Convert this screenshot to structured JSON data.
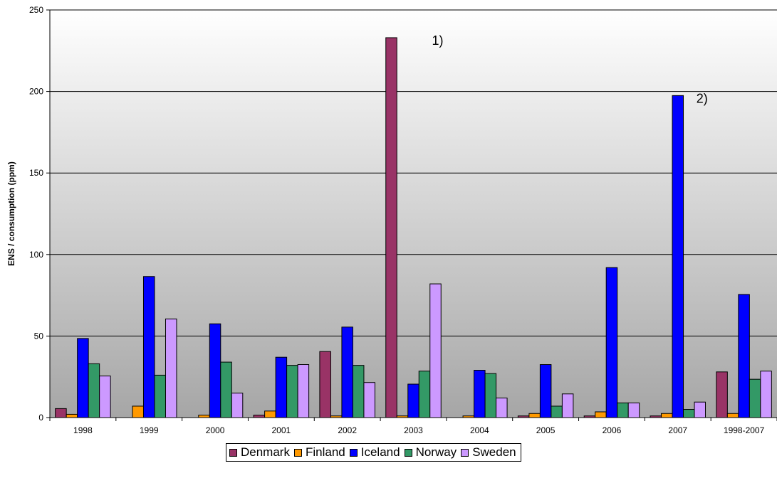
{
  "chart_data": {
    "type": "bar",
    "ylabel": "ENS / consumption (ppm)",
    "xlabel": "",
    "title": "",
    "ylim": [
      0,
      250
    ],
    "yticks": [
      0,
      50,
      100,
      150,
      200,
      250
    ],
    "categories": [
      "1998",
      "1999",
      "2000",
      "2001",
      "2002",
      "2003",
      "2004",
      "2005",
      "2006",
      "2007",
      "1998-2007"
    ],
    "series": [
      {
        "name": "Denmark",
        "color": "#993366",
        "values": [
          5.5,
          0,
          0,
          1.5,
          40.5,
          233,
          0,
          1,
          1,
          1,
          28
        ]
      },
      {
        "name": "Finland",
        "color": "#FF9900",
        "values": [
          2,
          7,
          1.5,
          4,
          1,
          1,
          1,
          2.5,
          3.5,
          2.5,
          2.5
        ]
      },
      {
        "name": "Iceland",
        "color": "#0000FF",
        "values": [
          48.5,
          86.5,
          57.5,
          37,
          55.5,
          20.5,
          29,
          32.5,
          92,
          197.5,
          75.5
        ]
      },
      {
        "name": "Norway",
        "color": "#339966",
        "values": [
          33,
          26,
          34,
          32,
          32,
          28.5,
          27,
          7,
          9,
          5,
          23.5
        ]
      },
      {
        "name": "Sweden",
        "color": "#CC99FF",
        "values": [
          25.5,
          60.5,
          15,
          32.5,
          21.5,
          82,
          12,
          14.5,
          9,
          9.5,
          28.5
        ]
      }
    ],
    "annotations": [
      {
        "text": "1)",
        "category": "2003",
        "y": 233
      },
      {
        "text": "2)",
        "category": "2007",
        "y": 197.5
      }
    ],
    "grid": true,
    "legend_position": "bottom"
  }
}
